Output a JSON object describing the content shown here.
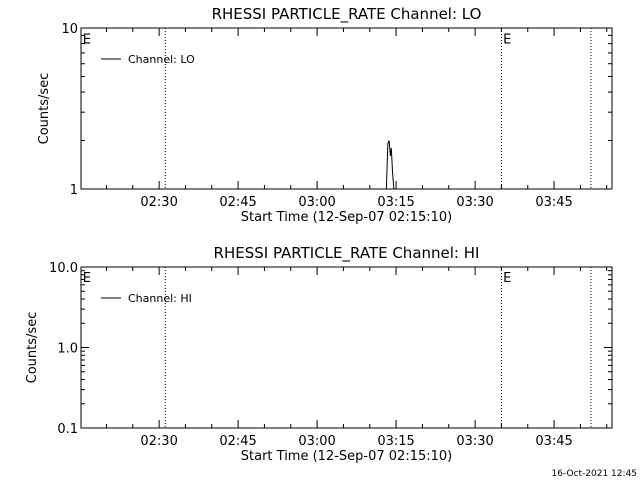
{
  "chart_data": [
    {
      "type": "line",
      "title": "RHESSI PARTICLE_RATE Channel: LO",
      "xlabel": "Start Time (12-Sep-07 02:15:10)",
      "ylabel": "Counts/sec",
      "yscale": "log",
      "ylim": [
        1,
        10
      ],
      "y_ticks": [
        1,
        10
      ],
      "y_tick_labels": [
        "1",
        "10"
      ],
      "xlim": [
        "02:15:10",
        "03:56:00"
      ],
      "x_ticks": [
        "02:30",
        "02:45",
        "03:00",
        "03:15",
        "03:30",
        "03:45"
      ],
      "x_tick_labels": [
        "02:30",
        "02:45",
        "03:00",
        "03:15",
        "03:30",
        "03:45"
      ],
      "vertical_markers": [
        "02:31:10",
        "03:35:00",
        "03:52:00"
      ],
      "annotations": [
        {
          "text": "E",
          "x": "02:15:30",
          "y": 8.6
        },
        {
          "text": "E",
          "x": "03:35:20",
          "y": 8.6
        }
      ],
      "legend": {
        "placement": "top-left",
        "entries": [
          "Channel: LO"
        ]
      },
      "grid": false,
      "series": [
        {
          "name": "Channel: LO",
          "x": [
            "03:13:10",
            "03:13:25",
            "03:13:40",
            "03:13:55",
            "03:14:05",
            "03:14:20",
            "03:14:35",
            "03:14:50"
          ],
          "y": [
            1.0,
            1.9,
            2.0,
            1.6,
            1.8,
            1.25,
            1.0,
            1.0
          ]
        }
      ]
    },
    {
      "type": "line",
      "title": "RHESSI PARTICLE_RATE Channel: HI",
      "xlabel": "Start Time (12-Sep-07 02:15:10)",
      "ylabel": "Counts/sec",
      "yscale": "log",
      "ylim": [
        0.1,
        10
      ],
      "y_ticks": [
        0.1,
        1,
        10
      ],
      "y_tick_labels": [
        "0.1",
        "1.0",
        "10.0"
      ],
      "xlim": [
        "02:15:10",
        "03:56:00"
      ],
      "x_ticks": [
        "02:30",
        "02:45",
        "03:00",
        "03:15",
        "03:30",
        "03:45"
      ],
      "x_tick_labels": [
        "02:30",
        "02:45",
        "03:00",
        "03:15",
        "03:30",
        "03:45"
      ],
      "vertical_markers": [
        "02:31:10",
        "03:35:00",
        "03:52:00"
      ],
      "annotations": [
        {
          "text": "E",
          "x": "02:15:30",
          "y": 7.5
        },
        {
          "text": "E",
          "x": "03:35:20",
          "y": 7.5
        }
      ],
      "legend": {
        "placement": "top-left",
        "entries": [
          "Channel: HI"
        ]
      },
      "grid": false,
      "series": [
        {
          "name": "Channel: HI",
          "x": [],
          "y": []
        }
      ]
    }
  ],
  "footer": {
    "timestamp": "16-Oct-2021 12:45"
  }
}
